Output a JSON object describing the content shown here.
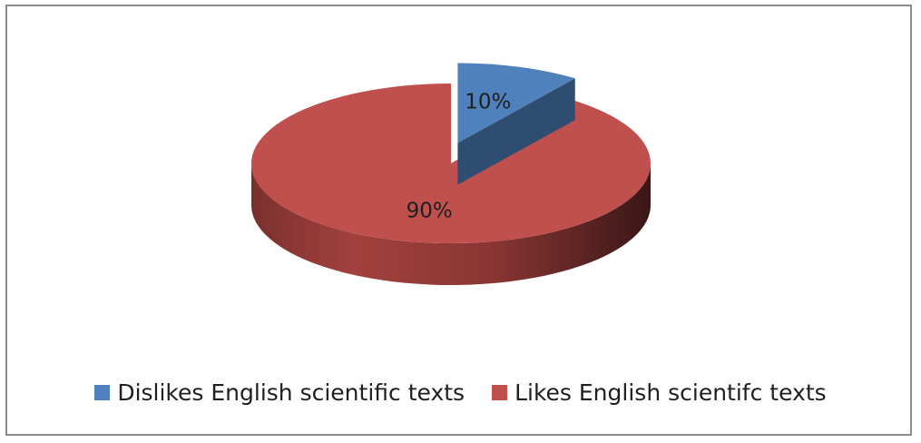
{
  "chart_data": {
    "type": "pie",
    "title": "",
    "slices": [
      {
        "name": "Dislikes English scientific texts",
        "value": 10,
        "label": "10%",
        "color": "#4f81bd",
        "exploded": true
      },
      {
        "name": "Likes English scientifc texts",
        "value": 90,
        "label": "90%",
        "color": "#c0504d",
        "exploded": false
      }
    ],
    "style": "3d",
    "legend": "bottom"
  }
}
